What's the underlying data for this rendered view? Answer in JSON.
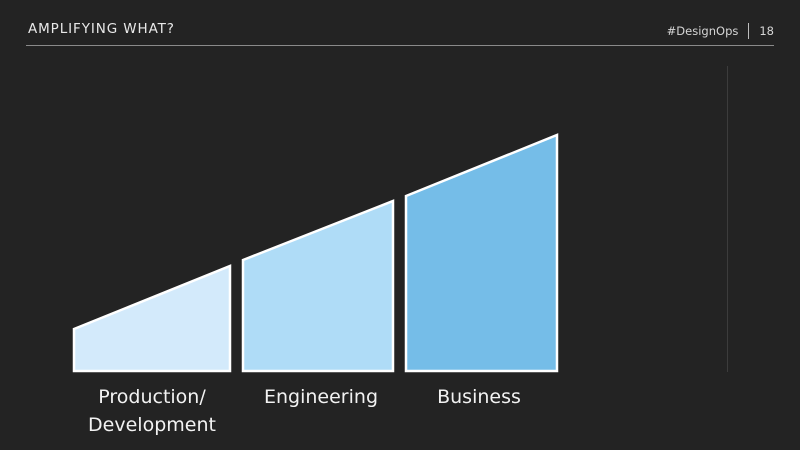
{
  "header": {
    "title": "AMPLIFYING WHAT?",
    "hashtag": "#DesignOps",
    "page_number": "18"
  },
  "stages": [
    {
      "line1": "Production/",
      "line2": "Development",
      "fill": "#d3eafb",
      "level_start": 0.21,
      "level_end": 0.44
    },
    {
      "line1": "Engineering",
      "line2": "",
      "fill": "#afdcf7",
      "level_start": 0.47,
      "level_end": 0.71
    },
    {
      "line1": "Business",
      "line2": "",
      "fill": "#75bde8",
      "level_start": 0.74,
      "level_end": 1.0
    }
  ],
  "colors": {
    "background": "#232323",
    "outline": "#ffffff"
  }
}
